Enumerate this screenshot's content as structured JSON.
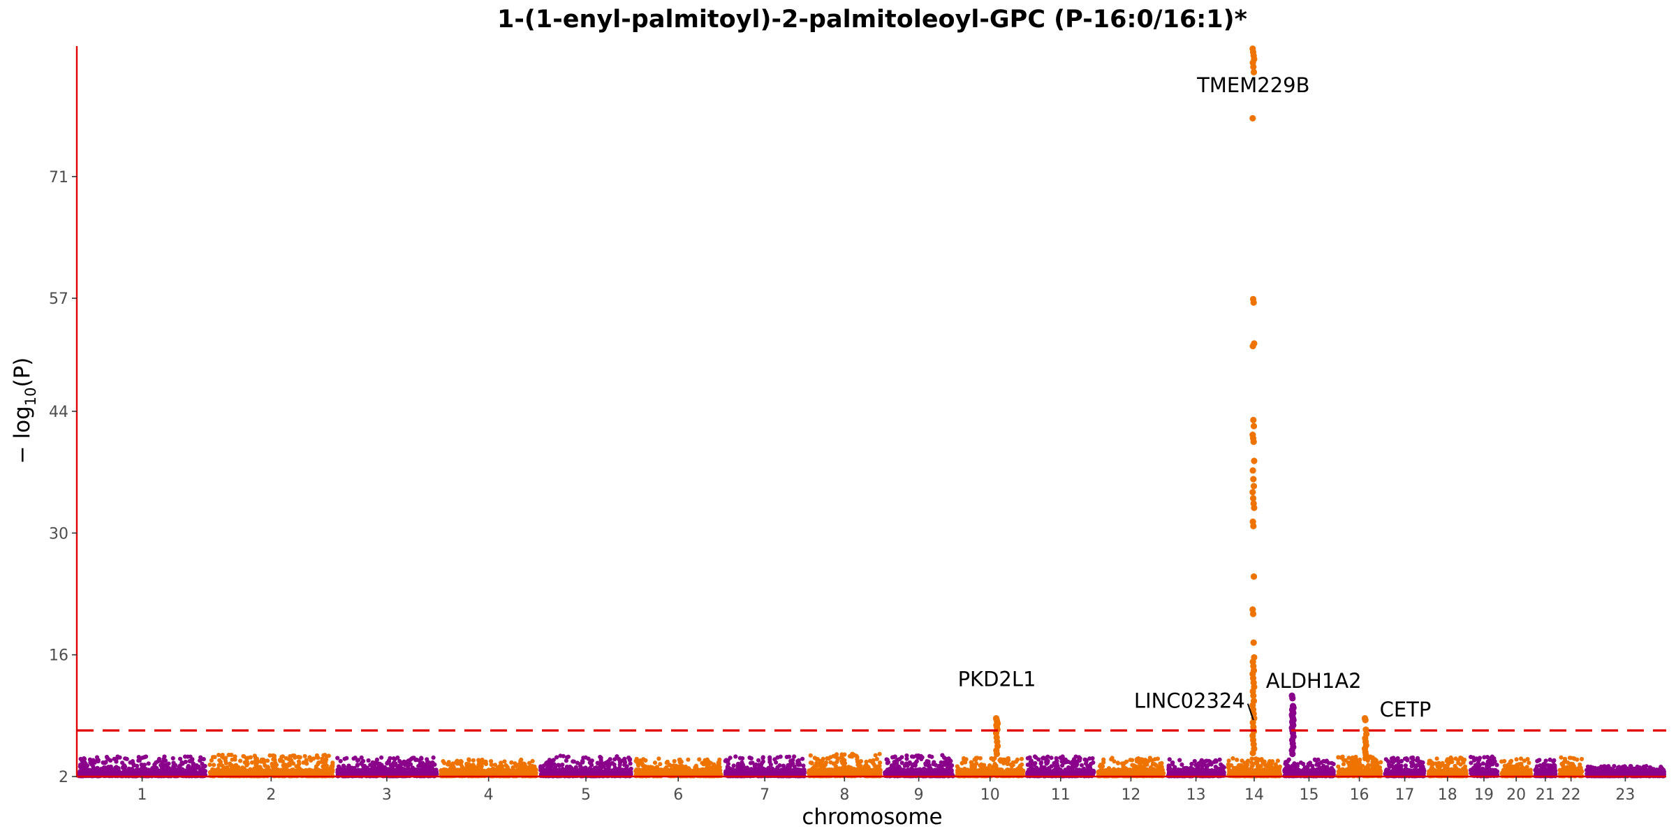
{
  "chart_data": {
    "type": "scatter",
    "subtype": "manhattan",
    "title": "1-(1-enyl-palmitoyl)-2-palmitoleoyl-GPC (P-16:0/16:1)*",
    "xlabel": "chromosome",
    "ylabel_parts": [
      "− log",
      "10",
      "(P)"
    ],
    "ylim": [
      2,
      86
    ],
    "y_ticks": [
      2,
      16,
      30,
      44,
      57,
      71
    ],
    "y_tick_labels": [
      "2",
      "16",
      "30",
      "44",
      "57",
      "71"
    ],
    "significance_threshold": 7.3,
    "colors": {
      "odd": "#8B008B",
      "even": "#EE7300",
      "axis": "#E00000",
      "threshold": "#E00000"
    },
    "chromosomes": [
      {
        "label": "1",
        "start": 0,
        "end": 249
      },
      {
        "label": "2",
        "start": 249,
        "end": 492
      },
      {
        "label": "3",
        "start": 492,
        "end": 690
      },
      {
        "label": "4",
        "start": 690,
        "end": 880
      },
      {
        "label": "5",
        "start": 880,
        "end": 1061
      },
      {
        "label": "6",
        "start": 1061,
        "end": 1232
      },
      {
        "label": "7",
        "start": 1232,
        "end": 1391
      },
      {
        "label": "8",
        "start": 1391,
        "end": 1536
      },
      {
        "label": "9",
        "start": 1536,
        "end": 1674
      },
      {
        "label": "10",
        "start": 1674,
        "end": 1808
      },
      {
        "label": "11",
        "start": 1808,
        "end": 1943
      },
      {
        "label": "12",
        "start": 1943,
        "end": 2076
      },
      {
        "label": "13",
        "start": 2076,
        "end": 2191
      },
      {
        "label": "14",
        "start": 2191,
        "end": 2298
      },
      {
        "label": "15",
        "start": 2298,
        "end": 2400
      },
      {
        "label": "16",
        "start": 2400,
        "end": 2490
      },
      {
        "label": "17",
        "start": 2490,
        "end": 2573
      },
      {
        "label": "18",
        "start": 2573,
        "end": 2653
      },
      {
        "label": "19",
        "start": 2653,
        "end": 2712
      },
      {
        "label": "20",
        "start": 2712,
        "end": 2776
      },
      {
        "label": "21",
        "start": 2776,
        "end": 2823
      },
      {
        "label": "22",
        "start": 2823,
        "end": 2874
      },
      {
        "label": "23",
        "start": 2874,
        "end": 3030
      }
    ],
    "background_peak_heights": [
      4.3,
      4.5,
      4.2,
      4.0,
      4.4,
      4.1,
      4.3,
      4.6,
      4.5,
      4.2,
      4.3,
      4.2,
      4.0,
      4.1,
      4.0,
      4.4,
      4.2,
      4.2,
      4.3,
      4.1,
      4.0,
      4.2,
      3.2
    ],
    "peaks": [
      {
        "chrom": "14",
        "pos": 52,
        "values": [
          85.7,
          85.3,
          84.9,
          84.5,
          84.1,
          83.6,
          83.0,
          77.7,
          56.9,
          56.5,
          51.8,
          51.5,
          43.0,
          42.3,
          41.3,
          40.9,
          40.5,
          38.3,
          37.2,
          36.2,
          35.4,
          34.7,
          34.0,
          33.4,
          32.9,
          31.3,
          30.8,
          25.0,
          21.2,
          20.7,
          17.4,
          15.7,
          15.2,
          14.7,
          14.2,
          13.8,
          13.3,
          12.8,
          12.3,
          11.8,
          11.3,
          10.7,
          10.2,
          9.7,
          9.2,
          8.7,
          8.2,
          7.7,
          7.2,
          6.7,
          6.2,
          5.7,
          5.2,
          4.7
        ]
      },
      {
        "chrom": "10",
        "pos": 80,
        "values": [
          8.7,
          8.5,
          8.3,
          8.1,
          7.9,
          7.7,
          7.4,
          7.0,
          6.5,
          6.0,
          5.5,
          5.0,
          4.6
        ]
      },
      {
        "chrom": "15",
        "pos": 20,
        "values": [
          11.3,
          11.0,
          10.1,
          9.9,
          9.7,
          9.5,
          9.3,
          9.1,
          8.9,
          8.7,
          8.5,
          8.3,
          8.1,
          7.9,
          7.6,
          7.3,
          7.0,
          6.6,
          6.2,
          5.8,
          5.4,
          5.0,
          4.6
        ]
      },
      {
        "chrom": "16",
        "pos": 57,
        "values": [
          8.7,
          8.5,
          7.4,
          6.9,
          6.4,
          6.0,
          5.6,
          5.2,
          4.8,
          4.5
        ]
      }
    ],
    "annotations": [
      {
        "label": "TMEM229B",
        "chrom": "14",
        "pos": 52,
        "y": 81.5,
        "anchor": "middle"
      },
      {
        "label": "PKD2L1",
        "chrom": "10",
        "pos": 80,
        "y": 13.2,
        "anchor": "middle"
      },
      {
        "label": "LINC02324",
        "chrom": "14",
        "pos": 52,
        "y": 10.7,
        "anchor": "end",
        "dx": -12,
        "leader_to_y": 8.5
      },
      {
        "label": "ALDH1A2",
        "chrom": "15",
        "pos": 20,
        "y": 13.0,
        "anchor": "middle",
        "dx": 30
      },
      {
        "label": "CETP",
        "chrom": "16",
        "pos": 57,
        "y": 9.7,
        "anchor": "start",
        "dx": 20
      }
    ]
  }
}
